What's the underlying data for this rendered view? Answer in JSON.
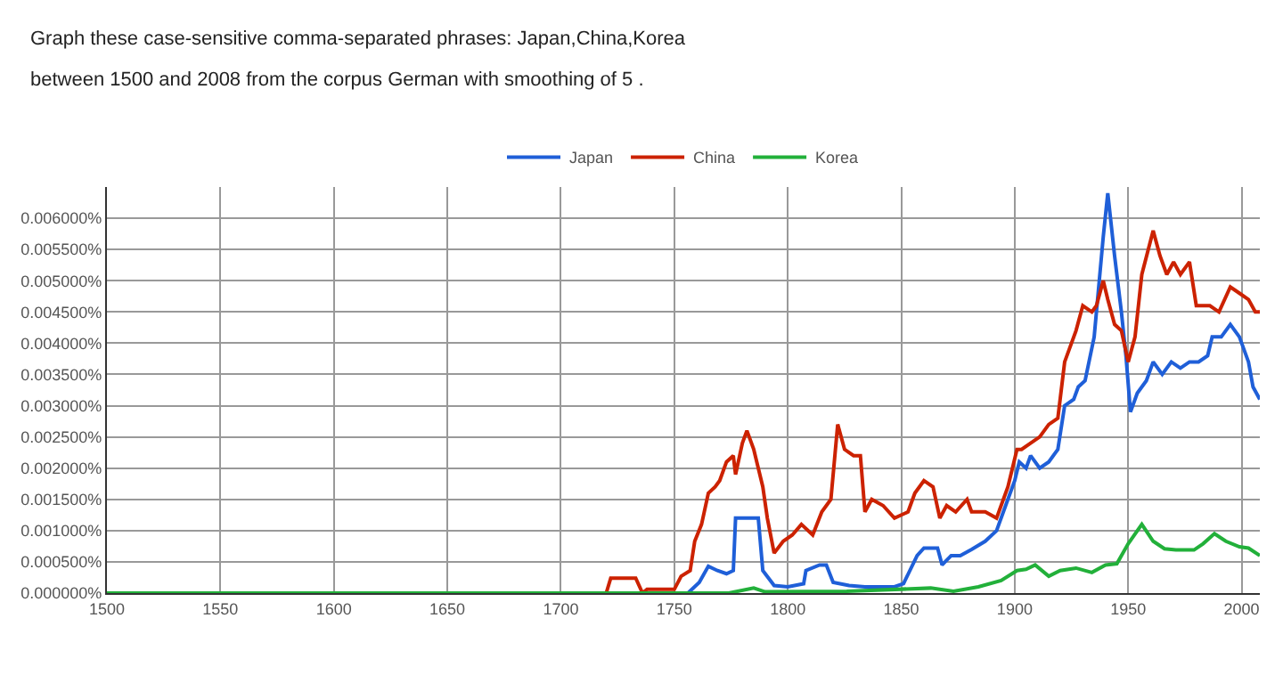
{
  "chart_data": {
    "type": "line",
    "annotations": [
      "Graph these case-sensitive comma-separated phrases: Japan,China,Korea",
      "between 1500 and 2008 from the corpus German with smoothing of 5 ."
    ],
    "xlim": [
      1500,
      2008
    ],
    "xticks": [
      1500,
      1550,
      1600,
      1650,
      1700,
      1750,
      1800,
      1850,
      1900,
      1950,
      2000
    ],
    "ylim": [
      0,
      0.0065
    ],
    "yticks": [
      {
        "value": 0,
        "label": "0.000000%"
      },
      {
        "value": 0.0005,
        "label": "0.000500%"
      },
      {
        "value": 0.001,
        "label": "0.001000%"
      },
      {
        "value": 0.0015,
        "label": "0.001500%"
      },
      {
        "value": 0.002,
        "label": "0.002000%"
      },
      {
        "value": 0.0025,
        "label": "0.002500%"
      },
      {
        "value": 0.003,
        "label": "0.003000%"
      },
      {
        "value": 0.0035,
        "label": "0.003500%"
      },
      {
        "value": 0.004,
        "label": "0.004000%"
      },
      {
        "value": 0.0045,
        "label": "0.004500%"
      },
      {
        "value": 0.005,
        "label": "0.005000%"
      },
      {
        "value": 0.0055,
        "label": "0.005500%"
      },
      {
        "value": 0.006,
        "label": "0.006000%"
      }
    ],
    "grid": true,
    "legend": "top",
    "marker": "none",
    "line_style": "solid",
    "series": [
      {
        "name": "Japan",
        "color": "#1f5fd8",
        "x": [
          1500,
          1756,
          1761,
          1765,
          1769,
          1773,
          1776,
          1777,
          1780,
          1787,
          1789,
          1794,
          1800,
          1807,
          1808,
          1814,
          1817,
          1820,
          1827,
          1834,
          1847,
          1851,
          1857,
          1860,
          1866,
          1868,
          1872,
          1876,
          1881,
          1887,
          1892,
          1896,
          1900,
          1902,
          1905,
          1907,
          1911,
          1915,
          1919,
          1922,
          1926,
          1928,
          1931,
          1935,
          1939,
          1941,
          1944,
          1947,
          1949,
          1951,
          1954,
          1958,
          1961,
          1965,
          1969,
          1973,
          1977,
          1981,
          1985,
          1987,
          1991,
          1995,
          1999,
          2003,
          2005,
          2008
        ],
        "values": [
          0,
          0,
          0.00017,
          0.00043,
          0.00036,
          0.00031,
          0.00036,
          0.0012,
          0.0012,
          0.0012,
          0.00036,
          0.00012,
          0.0001,
          0.00015,
          0.00036,
          0.00045,
          0.00045,
          0.00017,
          0.00012,
          0.0001,
          0.0001,
          0.00015,
          0.0006,
          0.00072,
          0.00072,
          0.00045,
          0.0006,
          0.0006,
          0.0007,
          0.00083,
          0.001,
          0.0014,
          0.0018,
          0.0021,
          0.002,
          0.0022,
          0.002,
          0.0021,
          0.0023,
          0.003,
          0.0031,
          0.0033,
          0.0034,
          0.0041,
          0.0057,
          0.0064,
          0.0054,
          0.0045,
          0.0038,
          0.0029,
          0.0032,
          0.0034,
          0.0037,
          0.0035,
          0.0037,
          0.0036,
          0.0037,
          0.0037,
          0.0038,
          0.0041,
          0.0041,
          0.0043,
          0.0041,
          0.0037,
          0.0033,
          0.0031
        ]
      },
      {
        "name": "China",
        "color": "#cc2200",
        "x": [
          1500,
          1720,
          1722,
          1733,
          1736,
          1738,
          1750,
          1753,
          1757,
          1759,
          1762,
          1765,
          1768,
          1770,
          1773,
          1776,
          1777,
          1780,
          1782,
          1785,
          1789,
          1791,
          1794,
          1798,
          1802,
          1806,
          1811,
          1815,
          1819,
          1822,
          1825,
          1829,
          1832,
          1834,
          1837,
          1842,
          1847,
          1853,
          1856,
          1860,
          1864,
          1867,
          1870,
          1874,
          1879,
          1881,
          1887,
          1892,
          1894,
          1897,
          1901,
          1903,
          1907,
          1911,
          1915,
          1919,
          1922,
          1924,
          1927,
          1930,
          1934,
          1936,
          1939,
          1941,
          1944,
          1947,
          1950,
          1953,
          1956,
          1961,
          1964,
          1967,
          1970,
          1973,
          1977,
          1980,
          1986,
          1990,
          1995,
          1999,
          2003,
          2006,
          2008
        ],
        "values": [
          0,
          0,
          0.00024,
          0.00024,
          0,
          6e-05,
          6e-05,
          0.00027,
          0.00036,
          0.00083,
          0.0011,
          0.0016,
          0.0017,
          0.0018,
          0.0021,
          0.0022,
          0.0019,
          0.0024,
          0.0026,
          0.0023,
          0.0017,
          0.0012,
          0.00064,
          0.00083,
          0.00093,
          0.0011,
          0.00093,
          0.0013,
          0.0015,
          0.0027,
          0.0023,
          0.0022,
          0.0022,
          0.0013,
          0.0015,
          0.0014,
          0.0012,
          0.0013,
          0.0016,
          0.0018,
          0.0017,
          0.0012,
          0.0014,
          0.0013,
          0.0015,
          0.0013,
          0.0013,
          0.0012,
          0.0014,
          0.0017,
          0.0023,
          0.0023,
          0.0024,
          0.0025,
          0.0027,
          0.0028,
          0.0037,
          0.0039,
          0.0042,
          0.0046,
          0.0045,
          0.0046,
          0.005,
          0.0047,
          0.0043,
          0.0042,
          0.0037,
          0.0041,
          0.0051,
          0.0058,
          0.0054,
          0.0051,
          0.0053,
          0.0051,
          0.0053,
          0.0046,
          0.0046,
          0.0045,
          0.0049,
          0.0048,
          0.0047,
          0.0045,
          0.0045
        ]
      },
      {
        "name": "Korea",
        "color": "#22b03a",
        "x": [
          1500,
          1774,
          1785,
          1790,
          1826,
          1863,
          1873,
          1884,
          1894,
          1901,
          1905,
          1909,
          1915,
          1920,
          1927,
          1934,
          1940,
          1945,
          1950,
          1956,
          1961,
          1966,
          1971,
          1979,
          1983,
          1988,
          1993,
          1999,
          2003,
          2008
        ],
        "values": [
          0,
          0,
          8e-05,
          2e-05,
          3e-05,
          8e-05,
          3e-05,
          0.0001,
          0.0002,
          0.00036,
          0.00038,
          0.00045,
          0.00027,
          0.00036,
          0.0004,
          0.00033,
          0.00045,
          0.00047,
          0.00079,
          0.0011,
          0.00083,
          0.00071,
          0.00069,
          0.00069,
          0.00079,
          0.00095,
          0.00083,
          0.00074,
          0.00072,
          0.0006
        ]
      }
    ]
  }
}
